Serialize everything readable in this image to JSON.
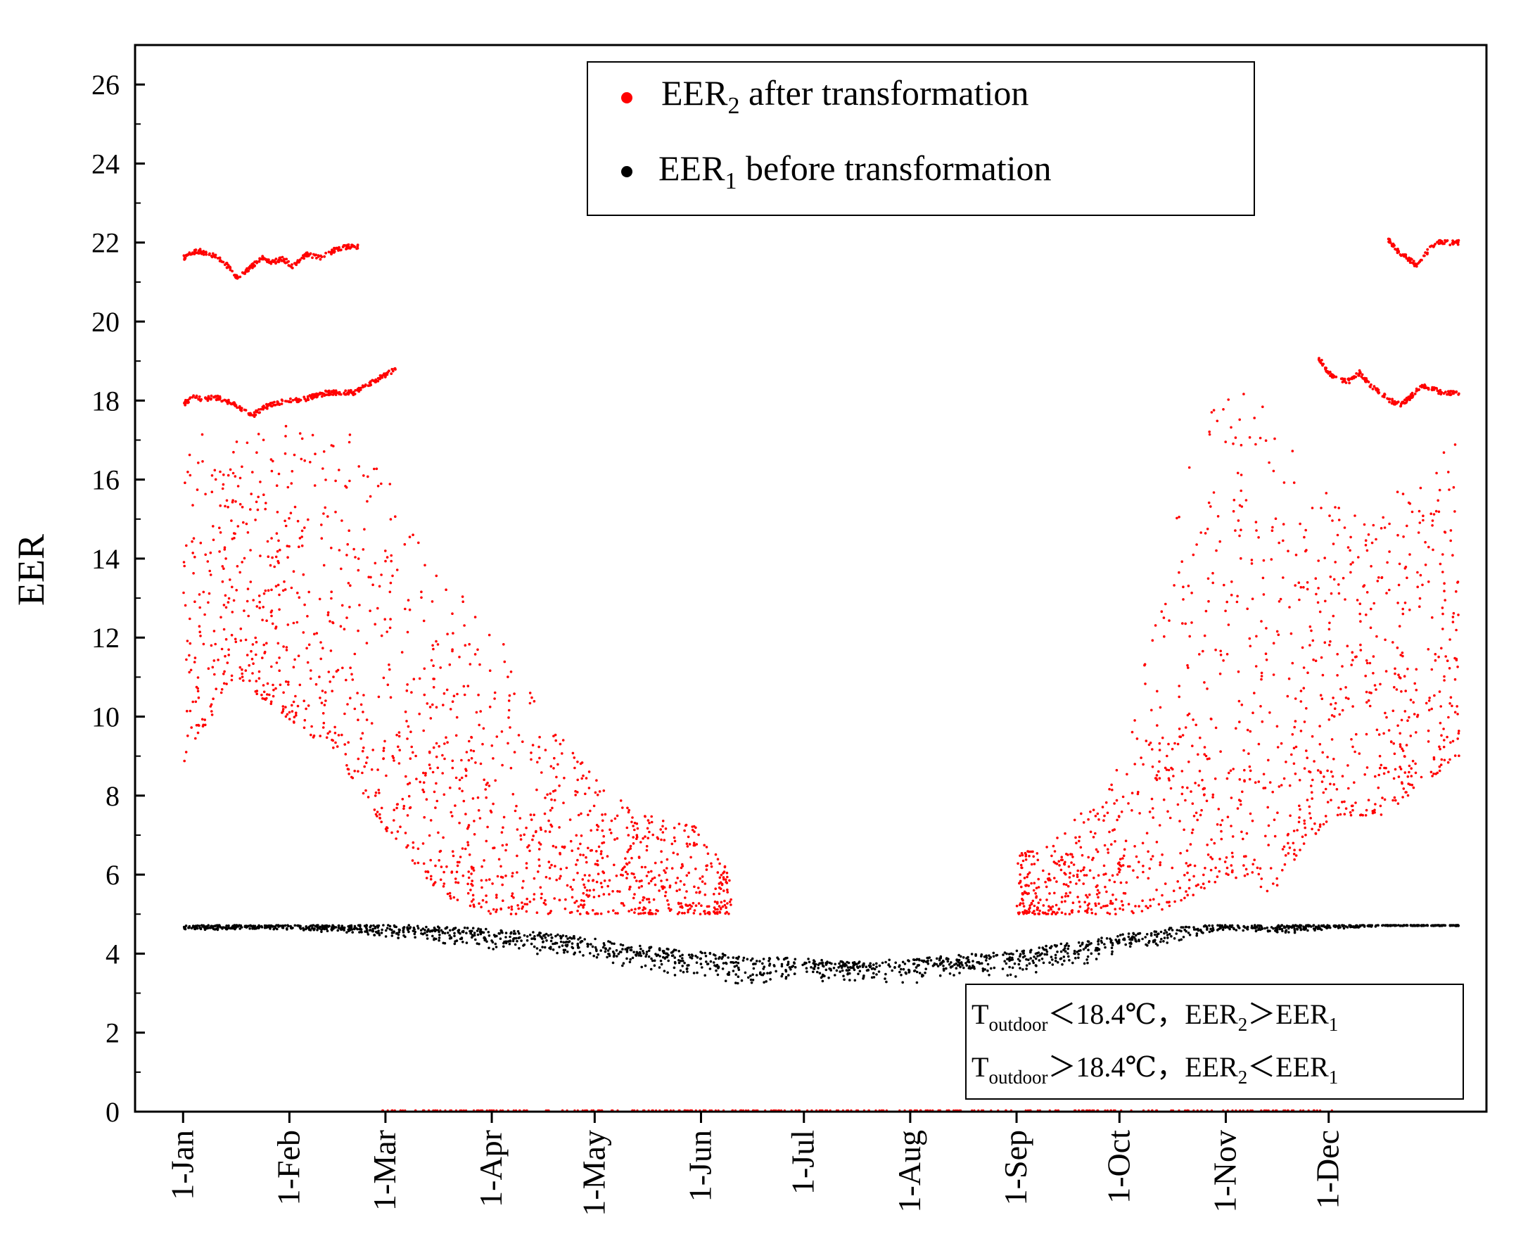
{
  "chart_data": {
    "type": "scatter",
    "title": "",
    "xlabel": "",
    "ylabel": "EER",
    "ylim": [
      0,
      27
    ],
    "yticks": [
      0,
      2,
      4,
      6,
      8,
      10,
      12,
      14,
      16,
      18,
      20,
      22,
      24,
      26
    ],
    "xlim_day": [
      -14,
      380
    ],
    "x_categories": [
      "1-Jan",
      "1-Feb",
      "1-Mar",
      "1-Apr",
      "1-May",
      "1-Jun",
      "1-Jul",
      "1-Aug",
      "1-Sep",
      "1-Oct",
      "1-Nov",
      "1-Dec"
    ],
    "x_category_days": [
      0,
      31,
      59,
      90,
      120,
      151,
      181,
      212,
      243,
      273,
      304,
      334
    ],
    "legend": {
      "position": "top-center",
      "entries": [
        {
          "prefix": "EER",
          "sub": "2",
          "suffix": " after transformation",
          "color": "#ff0000"
        },
        {
          "prefix": "EER",
          "sub": "1",
          "suffix": " before transformation",
          "color": "#000000"
        }
      ]
    },
    "annotation": {
      "position": "bottom-right",
      "line1": {
        "t": "T",
        "t_sub": "outdoor",
        "rel": "＜18.4℃，",
        "a": "EER",
        "a_sub": "2",
        "cmp": "＞EER",
        "b_sub": "1"
      },
      "line2": {
        "t": "T",
        "t_sub": "outdoor",
        "rel": "＞18.4℃，",
        "a": "EER",
        "a_sub": "2",
        "cmp": "＜EER",
        "b_sub": "1"
      }
    },
    "series": [
      {
        "name": "EER2 after transformation",
        "color": "#ff0000",
        "segments": [
          {
            "name": "jan-feb-upper-band",
            "x_day": [
              0,
              4,
              8,
              12,
              16,
              20,
              23,
              26,
              29,
              32,
              36,
              40,
              44,
              48,
              52
            ],
            "y": [
              21.6,
              21.8,
              21.7,
              21.5,
              21.1,
              21.4,
              21.6,
              21.5,
              21.6,
              21.4,
              21.7,
              21.6,
              21.8,
              21.9,
              21.9
            ]
          },
          {
            "name": "jan-mar-18-band",
            "x_day": [
              0,
              3,
              6,
              9,
              12,
              15,
              20,
              23,
              26,
              30,
              34,
              38,
              42,
              46,
              50,
              54,
              58,
              62
            ],
            "y": [
              17.9,
              18.1,
              18.0,
              18.1,
              18.0,
              17.9,
              17.6,
              17.8,
              17.9,
              18.0,
              18.0,
              18.1,
              18.2,
              18.2,
              18.2,
              18.4,
              18.6,
              18.8
            ]
          },
          {
            "name": "dec-upper-band",
            "x_day": [
              351,
              354,
              357,
              360,
              363,
              366,
              369,
              372
            ],
            "y": [
              22.1,
              21.8,
              21.6,
              21.4,
              21.8,
              22.0,
              22.0,
              22.0
            ]
          },
          {
            "name": "nov-dec-18-band",
            "x_day": [
              331,
              334,
              337,
              340,
              343,
              346,
              349,
              352,
              355,
              358,
              361,
              364,
              367,
              372
            ],
            "y": [
              19.1,
              18.7,
              18.5,
              18.5,
              18.7,
              18.4,
              18.2,
              18.0,
              17.9,
              18.1,
              18.4,
              18.3,
              18.2,
              18.2
            ]
          },
          {
            "name": "scatter-envelope-upper",
            "x_day": [
              0,
              15,
              30,
              45,
              60,
              75,
              90,
              105,
              120,
              135,
              150,
              160,
              243,
              255,
              265,
              275,
              285,
              295,
              305,
              315,
              325,
              335,
              350,
              372
            ],
            "y": [
              17.5,
              17.0,
              17.5,
              17.5,
              16.0,
              13.5,
              12.5,
              10.0,
              8.5,
              7.5,
              7.3,
              6.0,
              6.5,
              7.0,
              7.8,
              9.0,
              13.5,
              17.0,
              18.5,
              18.0,
              16.5,
              16.0,
              15.5,
              17.0
            ]
          },
          {
            "name": "scatter-envelope-lower",
            "x_day": [
              0,
              15,
              30,
              45,
              60,
              75,
              90,
              105,
              120,
              135,
              150,
              160,
              243,
              255,
              265,
              275,
              285,
              295,
              305,
              315,
              325,
              335,
              350,
              372
            ],
            "y": [
              8.8,
              11.0,
              10.0,
              9.0,
              7.0,
              5.5,
              5.0,
              5.0,
              5.0,
              5.0,
              5.0,
              5.0,
              5.0,
              5.0,
              5.0,
              5.0,
              5.1,
              5.5,
              6.0,
              5.2,
              6.5,
              7.5,
              7.5,
              9.0
            ]
          }
        ]
      },
      {
        "name": "EER1 before transformation",
        "color": "#000000",
        "segments": [
          {
            "name": "eer1-mean",
            "x_day": [
              0,
              30,
              60,
              75,
              90,
              105,
              120,
              135,
              150,
              165,
              181,
              195,
              212,
              228,
              243,
              258,
              273,
              290,
              304,
              320,
              334,
              350,
              372
            ],
            "y": [
              4.7,
              4.7,
              4.7,
              4.6,
              4.55,
              4.45,
              4.3,
              4.1,
              4.0,
              3.85,
              3.8,
              3.7,
              3.8,
              3.9,
              4.0,
              4.2,
              4.4,
              4.6,
              4.7,
              4.7,
              4.7,
              4.7,
              4.7
            ]
          },
          {
            "name": "eer1-lower-extent",
            "x_day": [
              0,
              30,
              60,
              75,
              90,
              105,
              120,
              135,
              150,
              165,
              181,
              195,
              212,
              228,
              243,
              258,
              273,
              290,
              304,
              320,
              334,
              350,
              372
            ],
            "y": [
              4.6,
              4.6,
              4.4,
              4.2,
              4.1,
              3.9,
              3.8,
              3.5,
              3.4,
              3.1,
              3.3,
              3.3,
              3.2,
              3.4,
              3.4,
              3.6,
              3.9,
              4.3,
              4.6,
              4.5,
              4.6,
              4.7,
              4.7
            ]
          }
        ]
      }
    ]
  }
}
